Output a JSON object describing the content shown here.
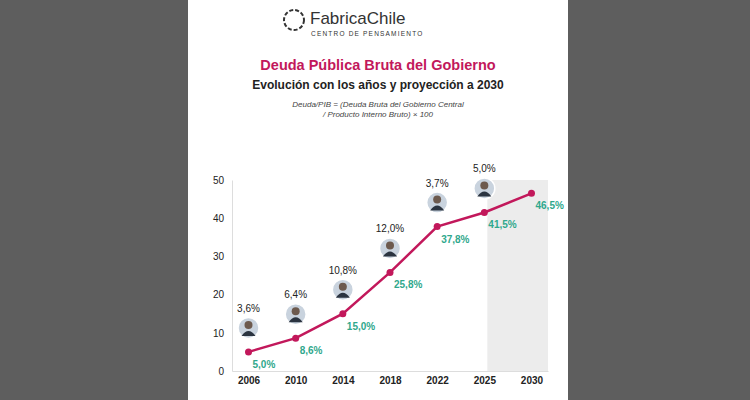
{
  "brand": {
    "name": "FabricaChile",
    "tagline": "CENTRO DE PENSAMIENTO"
  },
  "chart_data": {
    "type": "line",
    "title": "Deuda Pública Bruta del Gobierno",
    "subtitle": "Evolución con los años y proyección a 2030",
    "formula": "Deuda/PIB = (Deuda Bruta del Gobierno Central / Producto Interno Bruto) × 100",
    "categories": [
      "2006",
      "2010",
      "2014",
      "2018",
      "2022",
      "2025",
      "2030"
    ],
    "values": [
      5.0,
      8.6,
      15.0,
      25.8,
      37.8,
      41.5,
      46.5
    ],
    "value_labels": [
      "5,0%",
      "8,6%",
      "15,0%",
      "25,8%",
      "37,8%",
      "41,5%",
      "46,5%"
    ],
    "annotations": [
      {
        "x": "2006",
        "text": "3,6%"
      },
      {
        "x": "2010",
        "text": "6,4%"
      },
      {
        "x": "2014",
        "text": "10,8%"
      },
      {
        "x": "2018",
        "text": "12,0%"
      },
      {
        "x": "2022",
        "text": "3,7%"
      },
      {
        "x": "2025",
        "text": "5,0%"
      }
    ],
    "shaded_from": "2025",
    "color": "#c2185b",
    "marker": "circle",
    "data_labels": true,
    "grid": false,
    "ylim": [
      0,
      50
    ],
    "yticks": [
      0,
      10,
      20,
      30,
      40,
      50
    ]
  }
}
